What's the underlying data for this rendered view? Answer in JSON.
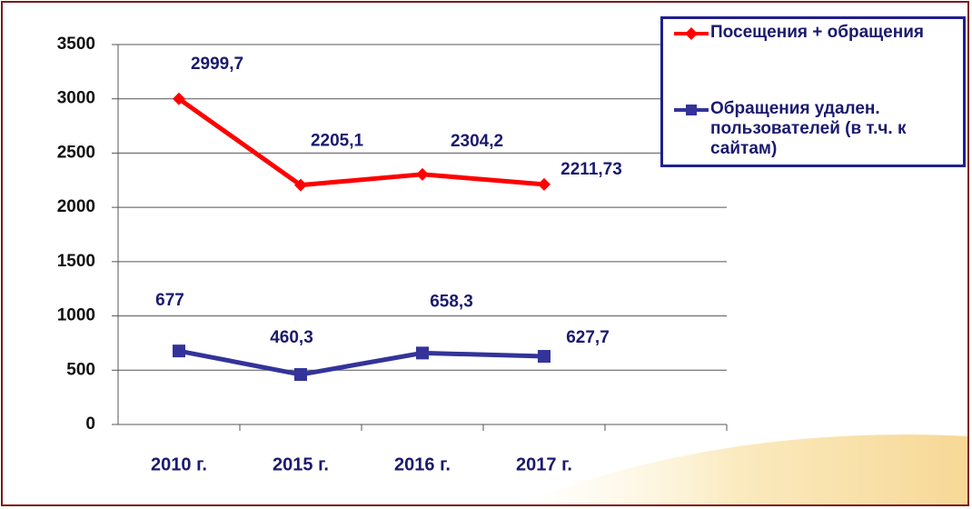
{
  "chart_data": {
    "type": "line",
    "categories": [
      "2010 г.",
      "2015 г.",
      "2016 г.",
      "2017 г.",
      null
    ],
    "series": [
      {
        "name": "Посещения + обращения",
        "color": "#ff0000",
        "marker": "diamond",
        "values": [
          2999.7,
          2205.1,
          2304.2,
          2211.73,
          null
        ],
        "value_labels": [
          "2999,7",
          "2205,1",
          "2304,2",
          "2211,73",
          null
        ]
      },
      {
        "name": "Обращения удален. пользователей (в т.ч. к сайтам)",
        "color": "#33339a",
        "marker": "square",
        "values": [
          677,
          460.3,
          658.3,
          627.7,
          null
        ],
        "value_labels": [
          "677",
          "460,3",
          "658,3",
          "627,7",
          null
        ]
      }
    ],
    "ylim": [
      0,
      3500
    ],
    "yticks": [
      0,
      500,
      1000,
      1500,
      2000,
      2500,
      3000,
      3500
    ],
    "grid": true
  }
}
